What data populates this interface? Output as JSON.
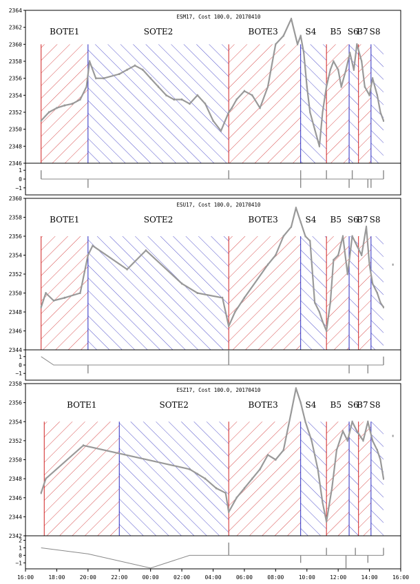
{
  "chart_data": [
    {
      "type": "line",
      "title": "ESM17, Cost 100.0, 20170410",
      "ylim": [
        2346,
        2364
      ],
      "yticks": [
        2346,
        2348,
        2350,
        2352,
        2354,
        2356,
        2358,
        2360,
        2362,
        2364
      ],
      "segment_top": 2360,
      "series": [
        {
          "x": [
            17.0,
            17.5,
            18.0,
            18.5,
            19.0,
            19.5,
            19.9,
            20.1,
            20.5,
            21.0,
            22.0,
            22.5,
            23.0,
            23.5,
            24.0,
            24.5,
            25.0,
            25.5,
            26.0,
            26.5,
            27.0,
            27.5,
            28.0,
            28.5,
            29.0,
            29.2,
            29.5,
            30.0,
            30.5,
            31.0,
            31.5,
            32.0,
            32.5,
            33.0,
            33.4,
            33.6,
            33.8,
            34.0,
            34.2,
            34.5,
            34.8,
            35.0,
            35.25,
            35.5,
            35.7,
            36.0,
            36.2,
            36.5,
            36.75,
            37.0,
            37.2,
            37.5,
            37.7,
            38.0,
            38.2,
            38.5,
            38.7,
            38.9
          ],
          "y": [
            2351,
            2352,
            2352.5,
            2352.8,
            2353,
            2353.5,
            2355,
            2358,
            2356,
            2356,
            2356.5,
            2357,
            2357.5,
            2357,
            2356,
            2355,
            2354,
            2353.5,
            2353.5,
            2353,
            2354,
            2353,
            2351,
            2349.8,
            2352,
            2352.5,
            2353.5,
            2354.5,
            2354,
            2352.5,
            2355,
            2360,
            2361,
            2363,
            2360,
            2361,
            2359,
            2355,
            2352,
            2350,
            2348,
            2352,
            2355,
            2357,
            2358,
            2357,
            2355,
            2357,
            2359,
            2357,
            2360,
            2358,
            2355,
            2354,
            2356,
            2354,
            2352,
            2351
          ]
        }
      ],
      "segments": [
        {
          "label": "BOTE1",
          "type": "buy",
          "start": 17.0,
          "end": 20.0,
          "label_x": 18.5
        },
        {
          "label": "SOTE2",
          "type": "sell",
          "start": 20.0,
          "end": 29.0,
          "label_x": 24.5
        },
        {
          "label": "BOTE3",
          "type": "buy",
          "start": 29.0,
          "end": 33.6,
          "label_x": 31.2
        },
        {
          "label": "S4",
          "type": "sell",
          "start": 33.6,
          "end": 35.25,
          "label_x": 34.25
        },
        {
          "label": "B5",
          "type": "buy",
          "start": 35.25,
          "end": 36.7,
          "label_x": 35.85
        },
        {
          "label": "S6",
          "type": "sell",
          "start": 36.7,
          "end": 37.3,
          "label_x": 36.95
        },
        {
          "label": "B7",
          "type": "buy",
          "start": 37.3,
          "end": 38.1,
          "label_x": 37.55
        },
        {
          "label": "S8",
          "type": "sell",
          "start": 38.1,
          "end": 38.9,
          "label_x": 38.35
        }
      ],
      "position": {
        "ylim": [
          -1.8,
          1.8
        ],
        "yticks": [
          1,
          0,
          -1
        ],
        "x": [
          17.0,
          38.9
        ],
        "y": [
          0,
          0
        ],
        "spikes": [
          {
            "x": 17.0,
            "from": 0,
            "to": 1
          },
          {
            "x": 20.0,
            "from": 0,
            "to": -1
          },
          {
            "x": 29.0,
            "from": 0,
            "to": 1
          },
          {
            "x": 33.6,
            "from": 0,
            "to": -1
          },
          {
            "x": 33.6,
            "from": 0,
            "to": 1
          },
          {
            "x": 35.25,
            "from": 0,
            "to": 1
          },
          {
            "x": 36.7,
            "from": 0,
            "to": -1
          },
          {
            "x": 36.9,
            "from": 0,
            "to": 1
          },
          {
            "x": 37.9,
            "from": 0,
            "to": -1
          },
          {
            "x": 38.1,
            "from": 0,
            "to": -1
          },
          {
            "x": 38.9,
            "from": 0,
            "to": 1
          }
        ]
      }
    },
    {
      "type": "line",
      "title": "ESU17, Cost 100.0, 20170410",
      "ylim": [
        2344,
        2360
      ],
      "yticks": [
        2344,
        2346,
        2348,
        2350,
        2352,
        2354,
        2356,
        2358,
        2360
      ],
      "segment_top": 2356,
      "series": [
        {
          "x": [
            17.0,
            17.3,
            17.8,
            18.5,
            19.5,
            20.0,
            20.3,
            22.5,
            23.7,
            26.0,
            27.0,
            28.6,
            29.0,
            29.4,
            30.0,
            31.5,
            32.0,
            32.5,
            33.0,
            33.3,
            33.6,
            33.9,
            34.2,
            34.5,
            34.8,
            35.0,
            35.25,
            35.5,
            35.7,
            36.0,
            36.3,
            36.6,
            36.9,
            37.2,
            37.5,
            37.8,
            38.0,
            38.2,
            38.5,
            38.7,
            38.9
          ],
          "y": [
            2348.5,
            2350,
            2349.2,
            2349.5,
            2350,
            2354,
            2355,
            2352.5,
            2354.5,
            2351,
            2350,
            2349.5,
            2346.5,
            2348,
            2349.5,
            2353,
            2354,
            2356,
            2357,
            2359,
            2357.5,
            2356,
            2355.5,
            2349,
            2348,
            2347,
            2346,
            2349,
            2353.5,
            2354,
            2356,
            2352,
            2356,
            2355,
            2354,
            2357,
            2353,
            2351,
            2350,
            2349,
            2348.5
          ]
        },
        {
          "x": [
            39.5
          ],
          "y": [
            2353
          ]
        }
      ],
      "segments": [
        {
          "label": "BOTE1",
          "type": "buy",
          "start": 17.0,
          "end": 20.0,
          "label_x": 18.5
        },
        {
          "label": "SOTE2",
          "type": "sell",
          "start": 20.0,
          "end": 29.0,
          "label_x": 24.5
        },
        {
          "label": "BOTE3",
          "type": "buy",
          "start": 29.0,
          "end": 33.6,
          "label_x": 31.2
        },
        {
          "label": "S4",
          "type": "sell",
          "start": 33.6,
          "end": 35.25,
          "label_x": 34.25
        },
        {
          "label": "B5",
          "type": "buy",
          "start": 35.25,
          "end": 36.7,
          "label_x": 35.85
        },
        {
          "label": "S6",
          "type": "sell",
          "start": 36.7,
          "end": 37.3,
          "label_x": 36.95
        },
        {
          "label": "B7",
          "type": "buy",
          "start": 37.3,
          "end": 38.1,
          "label_x": 37.55
        },
        {
          "label": "S8",
          "type": "sell",
          "start": 38.1,
          "end": 38.9,
          "label_x": 38.35
        }
      ],
      "position": {
        "ylim": [
          -1.8,
          1.8
        ],
        "yticks": [
          1,
          0,
          -1
        ],
        "x": [
          17.0,
          17.8,
          29.0,
          29.2,
          38.9
        ],
        "y": [
          1,
          0,
          0,
          0,
          0
        ],
        "spikes": [
          {
            "x": 20.0,
            "from": 0,
            "to": -1
          },
          {
            "x": 29.0,
            "from": 0,
            "to": 1.8
          },
          {
            "x": 36.7,
            "from": 0,
            "to": -1
          },
          {
            "x": 37.9,
            "from": 0,
            "to": -1
          },
          {
            "x": 38.9,
            "from": 0,
            "to": 1
          }
        ]
      }
    },
    {
      "type": "line",
      "title": "ESZ17, Cost 100.0, 20170410",
      "ylim": [
        2342,
        2358
      ],
      "yticks": [
        2342,
        2344,
        2346,
        2348,
        2350,
        2352,
        2354,
        2356,
        2358
      ],
      "segment_top": 2354,
      "series": [
        {
          "x": [
            17.0,
            17.3,
            19.7,
            26.5,
            27.0,
            27.5,
            28.2,
            28.8,
            29.0,
            29.5,
            30.0,
            30.5,
            31.0,
            31.5,
            32.0,
            32.5,
            33.0,
            33.3,
            33.6,
            33.9,
            34.3,
            34.7,
            35.0,
            35.25,
            35.6,
            35.9,
            36.3,
            36.6,
            36.9,
            37.2,
            37.6,
            37.9,
            38.2,
            38.5,
            38.7,
            38.9
          ],
          "y": [
            2346.5,
            2348,
            2351.5,
            2349,
            2348.5,
            2348,
            2347,
            2346.5,
            2344.5,
            2346,
            2347,
            2348,
            2349,
            2350.5,
            2350,
            2351,
            2355,
            2357.5,
            2356,
            2354,
            2352,
            2349,
            2345.5,
            2343.5,
            2347,
            2351,
            2353,
            2352,
            2354,
            2353,
            2352,
            2354,
            2352,
            2351,
            2350,
            2348
          ]
        },
        {
          "x": [
            39.5
          ],
          "y": [
            2352.5
          ]
        }
      ],
      "segments": [
        {
          "label": "BOTE1",
          "type": "buy",
          "start": 17.2,
          "end": 22.0,
          "label_x": 19.6
        },
        {
          "label": "SOTE2",
          "type": "sell",
          "start": 22.0,
          "end": 29.0,
          "label_x": 25.5
        },
        {
          "label": "BOTE3",
          "type": "buy",
          "start": 29.0,
          "end": 33.6,
          "label_x": 31.2
        },
        {
          "label": "S4",
          "type": "sell",
          "start": 33.6,
          "end": 35.25,
          "label_x": 34.25
        },
        {
          "label": "B5",
          "type": "buy",
          "start": 35.25,
          "end": 36.7,
          "label_x": 35.85
        },
        {
          "label": "S6",
          "type": "sell",
          "start": 36.7,
          "end": 37.3,
          "label_x": 36.95
        },
        {
          "label": "B7",
          "type": "buy",
          "start": 37.3,
          "end": 38.1,
          "label_x": 37.55
        },
        {
          "label": "S8",
          "type": "sell",
          "start": 38.1,
          "end": 38.9,
          "label_x": 38.35
        }
      ],
      "position": {
        "ylim": [
          -1.8,
          2.6
        ],
        "yticks": [
          2,
          1,
          0,
          -1
        ],
        "x": [
          17.0,
          20.0,
          24.0,
          26.5,
          29.0,
          38.9
        ],
        "y": [
          1,
          0.2,
          -1.7,
          0,
          0,
          0
        ],
        "spikes": [
          {
            "x": 29.0,
            "from": 0,
            "to": 1.7
          },
          {
            "x": 33.6,
            "from": 0,
            "to": -1
          },
          {
            "x": 35.25,
            "from": 0,
            "to": 1
          },
          {
            "x": 36.5,
            "from": 0,
            "to": -1.8
          },
          {
            "x": 37.1,
            "from": 0,
            "to": 1
          },
          {
            "x": 37.9,
            "from": 0,
            "to": -1
          },
          {
            "x": 38.9,
            "from": 0,
            "to": 1
          }
        ]
      }
    }
  ],
  "xaxis": {
    "xlim": [
      16,
      40
    ],
    "ticks": [
      16,
      18,
      20,
      22,
      24,
      26,
      28,
      30,
      32,
      34,
      36,
      38,
      40
    ],
    "tick_labels": [
      "16:00",
      "18:00",
      "20:00",
      "22:00",
      "00:00",
      "02:00",
      "04:00",
      "06:00",
      "08:00",
      "10:00",
      "12:00",
      "14:00",
      "16:00"
    ]
  },
  "style": {
    "buy_color": "#d02020",
    "sell_color": "#2828c0",
    "price_color": "#999999",
    "position_color": "#888888"
  }
}
